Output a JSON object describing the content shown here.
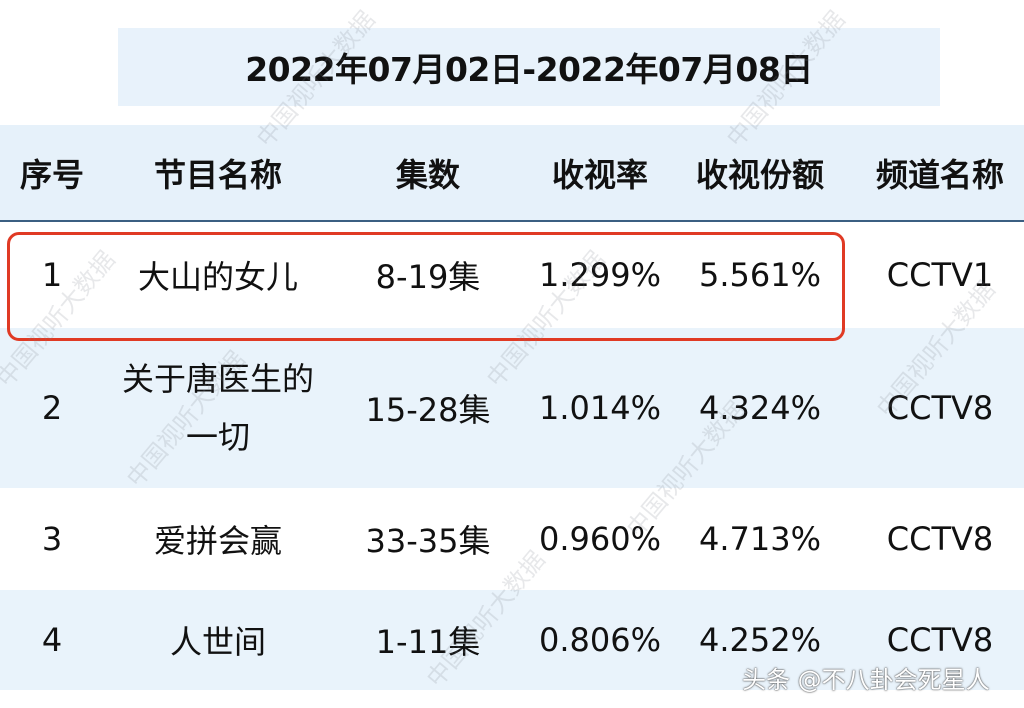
{
  "title": "2022年07月02日-2022年07月08日",
  "columns": [
    "序号",
    "节目名称",
    "集数",
    "收视率",
    "收视份额",
    "频道名称"
  ],
  "rows": [
    {
      "rank": "1",
      "name": "大山的女儿",
      "episodes": "8-19集",
      "rating": "1.299%",
      "share": "5.561%",
      "channel": "CCTV1",
      "highlighted": true
    },
    {
      "rank": "2",
      "name": "关于唐医生的一切",
      "episodes": "15-28集",
      "rating": "1.014%",
      "share": "4.324%",
      "channel": "CCTV8"
    },
    {
      "rank": "3",
      "name": "爱拼会赢",
      "episodes": "33-35集",
      "rating": "0.960%",
      "share": "4.713%",
      "channel": "CCTV8"
    },
    {
      "rank": "4",
      "name": "人世间",
      "episodes": "1-11集",
      "rating": "0.806%",
      "share": "4.252%",
      "channel": "CCTV8"
    }
  ],
  "watermark": "中国视听大数据",
  "credit": "头条 @不八卦会死星人",
  "colors": {
    "header_bg": "#e6f1fa",
    "alt_row_bg": "#e9f3fb",
    "highlight": "#e03a24",
    "header_rule": "#3b5f82"
  }
}
